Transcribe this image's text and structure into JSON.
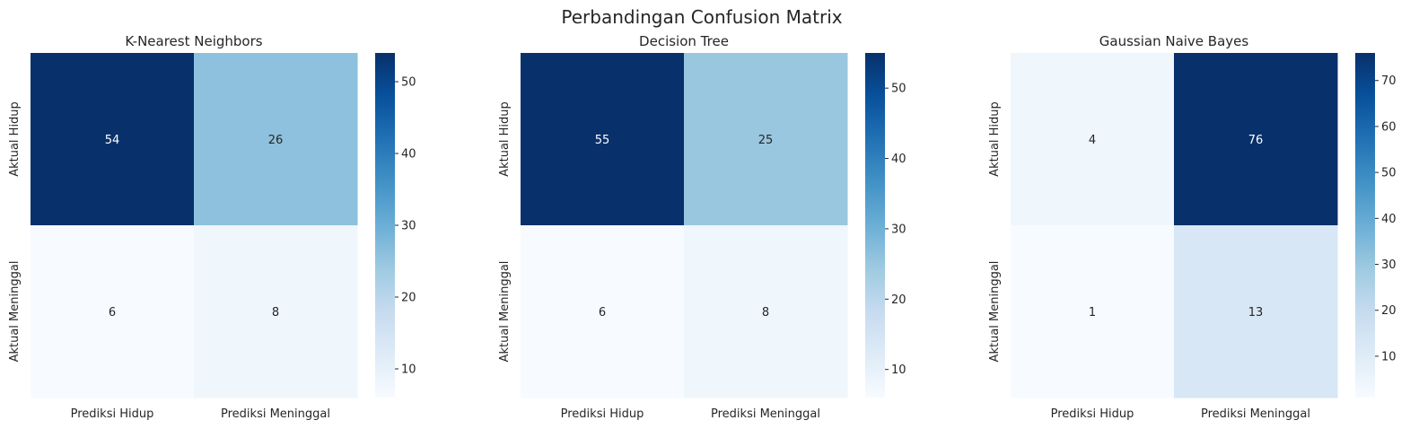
{
  "figure_title": "Perbandingan Confusion Matrix",
  "colormap": {
    "name": "Blues",
    "stops": [
      "#f7fbff",
      "#deebf7",
      "#c6dbef",
      "#9ecae1",
      "#6baed6",
      "#4292c6",
      "#2171b5",
      "#08519c",
      "#08306b"
    ]
  },
  "chart_data": [
    {
      "type": "heatmap",
      "title": "K-Nearest Neighbors",
      "x_labels": [
        "Prediksi Hidup",
        "Prediksi Meninggal"
      ],
      "y_labels": [
        "Aktual Hidup",
        "Aktual Meninggal"
      ],
      "matrix": [
        [
          54,
          26
        ],
        [
          6,
          8
        ]
      ],
      "vmin": 6,
      "vmax": 54,
      "colorbar_ticks": [
        10,
        20,
        30,
        40,
        50
      ]
    },
    {
      "type": "heatmap",
      "title": "Decision Tree",
      "x_labels": [
        "Prediksi Hidup",
        "Prediksi Meninggal"
      ],
      "y_labels": [
        "Aktual Hidup",
        "Aktual Meninggal"
      ],
      "matrix": [
        [
          55,
          25
        ],
        [
          6,
          8
        ]
      ],
      "vmin": 6,
      "vmax": 55,
      "colorbar_ticks": [
        10,
        20,
        30,
        40,
        50
      ]
    },
    {
      "type": "heatmap",
      "title": "Gaussian Naive Bayes",
      "x_labels": [
        "Prediksi Hidup",
        "Prediksi Meninggal"
      ],
      "y_labels": [
        "Aktual Hidup",
        "Aktual Meninggal"
      ],
      "matrix": [
        [
          4,
          76
        ],
        [
          1,
          13
        ]
      ],
      "vmin": 1,
      "vmax": 76,
      "colorbar_ticks": [
        10,
        20,
        30,
        40,
        50,
        60,
        70
      ]
    }
  ]
}
